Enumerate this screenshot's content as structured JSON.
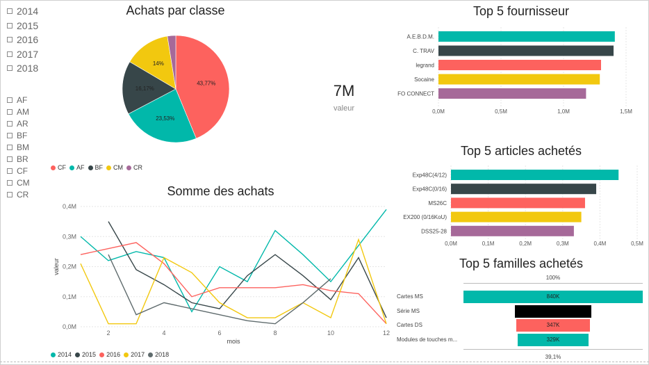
{
  "slicers": {
    "years": [
      "2014",
      "2015",
      "2016",
      "2017",
      "2018"
    ],
    "classes": [
      "AF",
      "AM",
      "AR",
      "BF",
      "BM",
      "BR",
      "CF",
      "CM",
      "CR"
    ]
  },
  "kpi": {
    "value": "7M",
    "label": "valeur"
  },
  "colors": {
    "teal": "#01b8aa",
    "dark": "#374649",
    "red": "#fd625e",
    "yellow": "#f2c80f",
    "purple": "#a66999",
    "gray": "#5f6b6d",
    "black": "#000000"
  },
  "chart_data": [
    {
      "id": "pie",
      "type": "pie",
      "title": "Achats par classe",
      "slices": [
        {
          "name": "CF",
          "value": 43.77,
          "label": "43,77%",
          "color": "#fd625e"
        },
        {
          "name": "AF",
          "value": 23.53,
          "label": "23,53%",
          "color": "#01b8aa"
        },
        {
          "name": "BF",
          "value": 16.17,
          "label": "16,17%",
          "color": "#374649"
        },
        {
          "name": "CM",
          "value": 14.0,
          "label": "14%",
          "color": "#f2c80f"
        },
        {
          "name": "CR",
          "value": 2.53,
          "label": "",
          "color": "#a66999"
        }
      ],
      "legend": [
        "CF",
        "AF",
        "BF",
        "CM",
        "CR"
      ]
    },
    {
      "id": "line",
      "type": "line",
      "title": "Somme des achats",
      "xlabel": "mois",
      "ylabel": "valeur",
      "x_ticks": [
        "2",
        "4",
        "6",
        "8",
        "10",
        "12"
      ],
      "y_ticks": [
        "0,0M",
        "0,1M",
        "0,2M",
        "0,3M",
        "0,4M"
      ],
      "xlim": [
        1,
        12
      ],
      "ylim": [
        0,
        0.4
      ],
      "legend": [
        "2014",
        "2015",
        "2016",
        "2017",
        "2018"
      ],
      "series": [
        {
          "name": "2014",
          "color": "#01b8aa",
          "x": [
            1,
            2,
            3,
            4,
            5,
            6,
            7,
            8,
            9,
            10,
            11,
            12
          ],
          "values": [
            0.3,
            0.22,
            0.25,
            0.23,
            0.05,
            0.2,
            0.15,
            0.32,
            0.24,
            0.15,
            0.27,
            0.39
          ]
        },
        {
          "name": "2015",
          "color": "#374649",
          "x": [
            2,
            3,
            4,
            5,
            6,
            7,
            8,
            9,
            10,
            11,
            12
          ],
          "values": [
            0.35,
            0.19,
            0.14,
            0.08,
            0.06,
            0.17,
            0.24,
            0.17,
            0.09,
            0.23,
            0.03
          ]
        },
        {
          "name": "2016",
          "color": "#fd625e",
          "x": [
            1,
            2,
            3,
            4,
            5,
            6,
            7,
            8,
            9,
            10,
            11,
            12
          ],
          "values": [
            0.24,
            0.26,
            0.28,
            0.21,
            0.1,
            0.13,
            0.13,
            0.13,
            0.14,
            0.12,
            0.11,
            0.01
          ]
        },
        {
          "name": "2017",
          "color": "#f2c80f",
          "x": [
            1,
            2,
            3,
            4,
            5,
            6,
            7,
            8,
            9,
            10,
            11,
            12
          ],
          "values": [
            0.21,
            0.01,
            0.01,
            0.23,
            0.18,
            0.08,
            0.03,
            0.03,
            0.08,
            0.03,
            0.29,
            0.01
          ]
        },
        {
          "name": "2018",
          "color": "#5f6b6d",
          "x": [
            2,
            3,
            4,
            5,
            6,
            7,
            8,
            9,
            10
          ],
          "values": [
            0.24,
            0.04,
            0.08,
            0.06,
            0.04,
            0.02,
            0.01,
            0.08,
            0.16
          ]
        }
      ]
    },
    {
      "id": "fournisseur",
      "type": "bar",
      "orientation": "horizontal",
      "title": "Top 5 fournisseur",
      "categories": [
        "A.E.B.D.M.",
        "C. TRAV",
        "legrand",
        "Socaine",
        "FO CONNECT"
      ],
      "values": [
        1.41,
        1.4,
        1.3,
        1.29,
        1.18
      ],
      "colors": [
        "#01b8aa",
        "#374649",
        "#fd625e",
        "#f2c80f",
        "#a66999"
      ],
      "x_ticks": [
        "0,0M",
        "0,5M",
        "1,0M",
        "1,5M"
      ],
      "xlim": [
        0,
        1.5
      ]
    },
    {
      "id": "articles",
      "type": "bar",
      "orientation": "horizontal",
      "title": "Top 5 articles achetés",
      "categories": [
        "Exp48C(4/12)",
        "Exp48C(0/16)",
        "MS26C",
        "EX200 (0/16KoU)",
        "DSS25-28"
      ],
      "values": [
        0.45,
        0.39,
        0.36,
        0.35,
        0.33
      ],
      "colors": [
        "#01b8aa",
        "#374649",
        "#fd625e",
        "#f2c80f",
        "#a66999"
      ],
      "x_ticks": [
        "0,0M",
        "0,1M",
        "0,2M",
        "0,3M",
        "0,4M",
        "0,5M"
      ],
      "xlim": [
        0,
        0.5
      ]
    },
    {
      "id": "familles",
      "type": "bar",
      "orientation": "funnel",
      "title": "Top 5 familles achetés",
      "categories": [
        "Cartes MS",
        "Série MS",
        "Cartes DS",
        "Modules de touches m..."
      ],
      "values": [
        840,
        360,
        347,
        329
      ],
      "value_labels": [
        "840K",
        "",
        "347K",
        "329K"
      ],
      "colors": [
        "#01b8aa",
        "#000000",
        "#fd625e",
        "#01b8aa"
      ],
      "top_pct": "100%",
      "bottom_pct": "39,1%"
    }
  ]
}
